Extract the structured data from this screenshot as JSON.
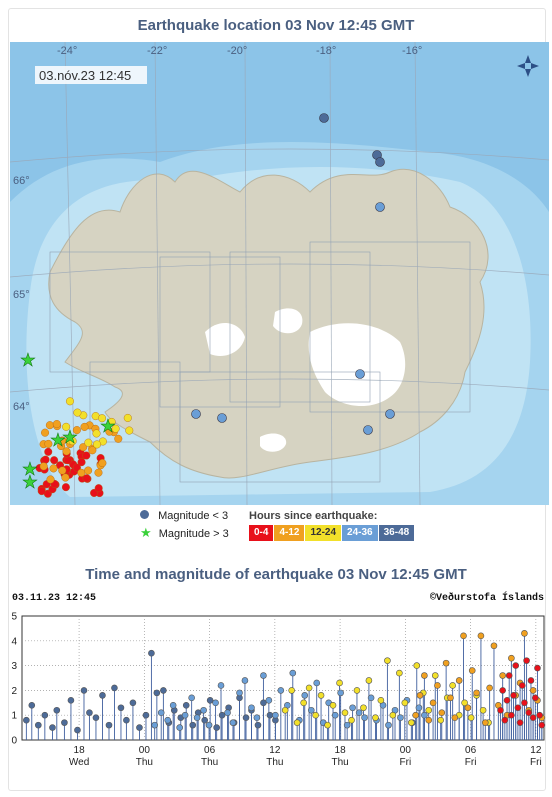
{
  "map_panel": {
    "title": "Earthquake location   03 Nov 12:45 GMT",
    "timestamp": "03.nóv.23  12:45",
    "lon_labels": [
      "-24°",
      "-22°",
      "-20°",
      "-18°",
      "-16°"
    ],
    "lat_labels": [
      "66°",
      "65°",
      "64°"
    ],
    "compass_icon": "compass-arrows-icon",
    "colors": {
      "ocean_deep": "#8cc4e8",
      "ocean_shallow": "#b8dff2",
      "land": "#d6d3c2",
      "glacier": "#ffffff"
    }
  },
  "legend": {
    "magnitude_small": "Magnitude < 3",
    "magnitude_large": "Magnitude > 3",
    "hours_title": "Hours since earthquake:",
    "hours": [
      {
        "label": "0-4",
        "color": "#e8101a"
      },
      {
        "label": "4-12",
        "color": "#f0a020"
      },
      {
        "label": "12-24",
        "color": "#f2e02a"
      },
      {
        "label": "24-36",
        "color": "#6a9ed6"
      },
      {
        "label": "36-48",
        "color": "#4d6b98"
      }
    ],
    "star_color": "#3ad13a",
    "small_dot_color": "#4d6b98"
  },
  "series_panel": {
    "title": "Time and magnitude of earthquake   03 Nov 12:45 GMT",
    "timestamp": "03.11.23  12:45",
    "credit": "©Veðurstofa Íslands"
  },
  "chart_data": {
    "type": "scatter",
    "title": "Time and magnitude of earthquake   03 Nov 12:45 GMT",
    "xlabel": "",
    "ylabel": "",
    "ylim": [
      0,
      5
    ],
    "y_ticks": [
      0,
      1,
      2,
      3,
      4,
      5
    ],
    "x_ticks": [
      {
        "label": "18",
        "day": "Wed"
      },
      {
        "label": "00",
        "day": "Thu"
      },
      {
        "label": "06",
        "day": "Thu"
      },
      {
        "label": "12",
        "day": "Thu"
      },
      {
        "label": "18",
        "day": "Thu"
      },
      {
        "label": "00",
        "day": "Fri"
      },
      {
        "label": "06",
        "day": "Fri"
      },
      {
        "label": "12",
        "day": "Fri"
      }
    ],
    "grid": true,
    "x_unit": "hours before 03 Nov 12:45",
    "xlim": [
      -48,
      0
    ],
    "series": [
      {
        "name": "36-48",
        "color": "#4d6b98",
        "points": [
          [
            -47.6,
            0.8
          ],
          [
            -47.1,
            1.4
          ],
          [
            -46.5,
            0.6
          ],
          [
            -45.9,
            1.0
          ],
          [
            -45.2,
            0.5
          ],
          [
            -44.8,
            1.2
          ],
          [
            -44.1,
            0.7
          ],
          [
            -43.5,
            1.6
          ],
          [
            -42.9,
            0.4
          ],
          [
            -42.3,
            2.0
          ],
          [
            -41.8,
            1.1
          ],
          [
            -41.2,
            0.9
          ],
          [
            -40.6,
            1.8
          ],
          [
            -40.0,
            0.6
          ],
          [
            -39.5,
            2.1
          ],
          [
            -38.9,
            1.3
          ],
          [
            -38.4,
            0.8
          ],
          [
            -37.8,
            1.5
          ],
          [
            -37.2,
            0.5
          ],
          [
            -36.6,
            1.0
          ],
          [
            -36.1,
            3.5
          ],
          [
            -35.6,
            1.9
          ],
          [
            -35.0,
            2.0
          ],
          [
            -34.5,
            0.7
          ],
          [
            -34.0,
            1.2
          ],
          [
            -33.4,
            0.9
          ],
          [
            -32.9,
            1.4
          ],
          [
            -32.3,
            0.6
          ],
          [
            -31.8,
            1.1
          ],
          [
            -31.2,
            0.8
          ],
          [
            -30.7,
            1.6
          ],
          [
            -30.1,
            0.5
          ],
          [
            -29.6,
            1.0
          ],
          [
            -29.0,
            1.3
          ],
          [
            -28.5,
            0.7
          ],
          [
            -28.0,
            1.7
          ],
          [
            -27.4,
            0.9
          ],
          [
            -26.9,
            1.2
          ],
          [
            -26.3,
            0.6
          ],
          [
            -25.8,
            1.5
          ],
          [
            -25.2,
            1.0
          ],
          [
            -24.7,
            0.8
          ]
        ]
      },
      {
        "name": "24-36",
        "color": "#6a9ed6",
        "points": [
          [
            -35.8,
            0.6
          ],
          [
            -35.2,
            1.1
          ],
          [
            -34.6,
            0.8
          ],
          [
            -34.1,
            1.4
          ],
          [
            -33.5,
            0.5
          ],
          [
            -33.0,
            1.0
          ],
          [
            -32.4,
            1.7
          ],
          [
            -31.9,
            0.9
          ],
          [
            -31.3,
            1.2
          ],
          [
            -30.8,
            0.6
          ],
          [
            -30.2,
            1.5
          ],
          [
            -29.7,
            2.2
          ],
          [
            -29.1,
            1.1
          ],
          [
            -28.6,
            0.7
          ],
          [
            -28.0,
            1.9
          ],
          [
            -27.5,
            2.4
          ],
          [
            -26.9,
            1.3
          ],
          [
            -26.4,
            0.9
          ],
          [
            -25.8,
            2.6
          ],
          [
            -25.3,
            1.6
          ],
          [
            -24.7,
            1.0
          ],
          [
            -24.2,
            2.0
          ],
          [
            -23.6,
            1.4
          ],
          [
            -23.1,
            2.7
          ],
          [
            -22.5,
            0.8
          ],
          [
            -22.0,
            1.8
          ],
          [
            -21.4,
            1.2
          ],
          [
            -20.9,
            2.3
          ],
          [
            -20.3,
            0.7
          ],
          [
            -19.8,
            1.5
          ],
          [
            -19.2,
            1.0
          ],
          [
            -18.7,
            1.9
          ],
          [
            -18.1,
            0.6
          ],
          [
            -17.6,
            1.3
          ],
          [
            -17.0,
            1.1
          ],
          [
            -16.5,
            0.9
          ],
          [
            -15.9,
            1.7
          ],
          [
            -15.4,
            0.8
          ],
          [
            -14.8,
            1.4
          ],
          [
            -14.3,
            0.6
          ],
          [
            -13.7,
            1.2
          ],
          [
            -13.2,
            0.9
          ],
          [
            -12.6,
            1.6
          ],
          [
            -12.1,
            0.7
          ],
          [
            -11.5,
            1.3
          ],
          [
            -11.0,
            1.0
          ]
        ]
      },
      {
        "name": "12-24",
        "color": "#f2e02a",
        "points": [
          [
            -23.8,
            1.2
          ],
          [
            -23.2,
            2.0
          ],
          [
            -22.7,
            0.7
          ],
          [
            -22.1,
            1.5
          ],
          [
            -21.6,
            2.1
          ],
          [
            -21.0,
            1.0
          ],
          [
            -20.5,
            1.8
          ],
          [
            -19.9,
            0.6
          ],
          [
            -19.4,
            1.4
          ],
          [
            -18.8,
            2.3
          ],
          [
            -18.3,
            1.1
          ],
          [
            -17.7,
            0.8
          ],
          [
            -17.2,
            2.0
          ],
          [
            -16.6,
            1.3
          ],
          [
            -16.1,
            2.4
          ],
          [
            -15.5,
            0.9
          ],
          [
            -15.0,
            1.6
          ],
          [
            -14.4,
            3.2
          ],
          [
            -13.9,
            1.0
          ],
          [
            -13.3,
            2.7
          ],
          [
            -12.8,
            1.5
          ],
          [
            -12.2,
            0.7
          ],
          [
            -11.7,
            3.0
          ],
          [
            -11.1,
            1.9
          ],
          [
            -10.6,
            1.2
          ],
          [
            -10.0,
            2.6
          ],
          [
            -9.5,
            0.8
          ],
          [
            -8.9,
            1.7
          ],
          [
            -8.4,
            2.2
          ],
          [
            -7.8,
            1.0
          ],
          [
            -7.3,
            1.5
          ],
          [
            -6.7,
            0.9
          ],
          [
            -6.2,
            1.8
          ],
          [
            -5.6,
            1.2
          ],
          [
            -5.1,
            0.7
          ]
        ]
      },
      {
        "name": "4-12",
        "color": "#f0a020",
        "points": [
          [
            -11.8,
            1.0
          ],
          [
            -11.4,
            1.8
          ],
          [
            -11.0,
            2.6
          ],
          [
            -10.6,
            0.8
          ],
          [
            -10.2,
            1.5
          ],
          [
            -9.8,
            2.2
          ],
          [
            -9.4,
            1.1
          ],
          [
            -9.0,
            3.1
          ],
          [
            -8.6,
            1.7
          ],
          [
            -8.2,
            0.9
          ],
          [
            -7.8,
            2.4
          ],
          [
            -7.4,
            4.2
          ],
          [
            -7.0,
            1.3
          ],
          [
            -6.6,
            2.8
          ],
          [
            -6.2,
            1.9
          ],
          [
            -5.8,
            4.2
          ],
          [
            -5.4,
            0.7
          ],
          [
            -5.0,
            2.1
          ],
          [
            -4.6,
            3.8
          ],
          [
            -4.2,
            1.4
          ],
          [
            -3.8,
            2.6
          ],
          [
            -3.4,
            1.0
          ],
          [
            -3.0,
            3.3
          ],
          [
            -2.6,
            1.8
          ],
          [
            -2.2,
            2.3
          ],
          [
            -1.8,
            4.3
          ],
          [
            -1.4,
            1.2
          ],
          [
            -1.0,
            2.0
          ],
          [
            -0.6,
            1.6
          ],
          [
            -0.2,
            0.9
          ]
        ]
      },
      {
        "name": "0-4",
        "color": "#e8101a",
        "points": [
          [
            -4.0,
            1.2
          ],
          [
            -3.8,
            2.0
          ],
          [
            -3.6,
            0.8
          ],
          [
            -3.4,
            1.6
          ],
          [
            -3.2,
            2.6
          ],
          [
            -3.0,
            1.0
          ],
          [
            -2.8,
            1.8
          ],
          [
            -2.6,
            3.0
          ],
          [
            -2.4,
            1.3
          ],
          [
            -2.2,
            0.7
          ],
          [
            -2.0,
            2.2
          ],
          [
            -1.8,
            1.5
          ],
          [
            -1.6,
            3.2
          ],
          [
            -1.4,
            1.1
          ],
          [
            -1.2,
            2.4
          ],
          [
            -1.0,
            0.9
          ],
          [
            -0.8,
            1.7
          ],
          [
            -0.6,
            2.9
          ],
          [
            -0.4,
            1.0
          ],
          [
            -0.2,
            0.6
          ]
        ]
      }
    ]
  },
  "map_events": {
    "hours_colors": [
      "#e8101a",
      "#f0a020",
      "#f2e02a",
      "#6a9ed6",
      "#4d6b98"
    ]
  }
}
